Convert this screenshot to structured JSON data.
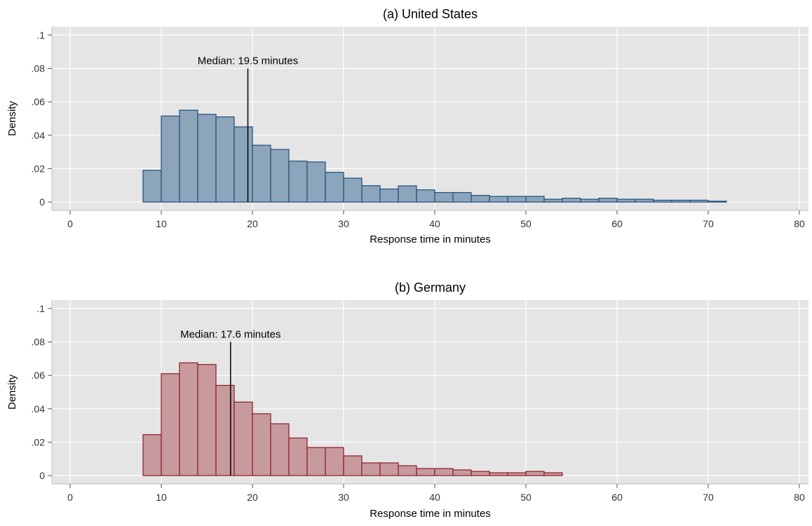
{
  "chart_data": [
    {
      "type": "bar",
      "title": "(a) United States",
      "xlabel": "Response time in minutes",
      "ylabel": "Density",
      "xlim": [
        -2,
        81
      ],
      "ylim": [
        -0.005,
        0.105
      ],
      "xticks": [
        0,
        10,
        20,
        30,
        40,
        50,
        60,
        70,
        80
      ],
      "xtick_labels": [
        "0",
        "10",
        "20",
        "30",
        "40",
        "50",
        "60",
        "70",
        "80"
      ],
      "yticks": [
        0,
        0.02,
        0.04,
        0.06,
        0.08,
        0.1
      ],
      "ytick_labels": [
        "0",
        ".02",
        ".04",
        ".06",
        ".08",
        ".1"
      ],
      "grid": true,
      "bin_start": 8,
      "bin_width": 2,
      "values": [
        0.019,
        0.0515,
        0.055,
        0.0525,
        0.051,
        0.045,
        0.034,
        0.0315,
        0.0245,
        0.024,
        0.0178,
        0.0143,
        0.0098,
        0.0078,
        0.0097,
        0.0073,
        0.0057,
        0.0057,
        0.004,
        0.0034,
        0.0034,
        0.0034,
        0.0017,
        0.0023,
        0.0017,
        0.0023,
        0.0017,
        0.0017,
        0.0011,
        0.0011,
        0.0011,
        0.0005
      ],
      "median": 19.5,
      "median_label": "Median: 19.5 minutes",
      "fill_color": "#8ca5bb",
      "edge_color": "#1f4e79"
    },
    {
      "type": "bar",
      "title": "(b) Germany",
      "xlabel": "Response time in minutes",
      "ylabel": "Density",
      "xlim": [
        -2,
        81
      ],
      "ylim": [
        -0.005,
        0.105
      ],
      "xticks": [
        0,
        10,
        20,
        30,
        40,
        50,
        60,
        70,
        80
      ],
      "xtick_labels": [
        "0",
        "10",
        "20",
        "30",
        "40",
        "50",
        "60",
        "70",
        "80"
      ],
      "yticks": [
        0,
        0.02,
        0.04,
        0.06,
        0.08,
        0.1
      ],
      "ytick_labels": [
        "0",
        ".02",
        ".04",
        ".06",
        ".08",
        ".1"
      ],
      "grid": true,
      "bin_start": 8,
      "bin_width": 2,
      "values": [
        0.0245,
        0.061,
        0.0675,
        0.0665,
        0.054,
        0.044,
        0.037,
        0.031,
        0.0225,
        0.0168,
        0.0168,
        0.0118,
        0.0076,
        0.0076,
        0.0059,
        0.0042,
        0.0042,
        0.0034,
        0.0025,
        0.0017,
        0.0017,
        0.0025,
        0.0017
      ],
      "median": 17.6,
      "median_label": "Median: 17.6 minutes",
      "fill_color": "#c79a9e",
      "edge_color": "#8b1a24"
    }
  ]
}
